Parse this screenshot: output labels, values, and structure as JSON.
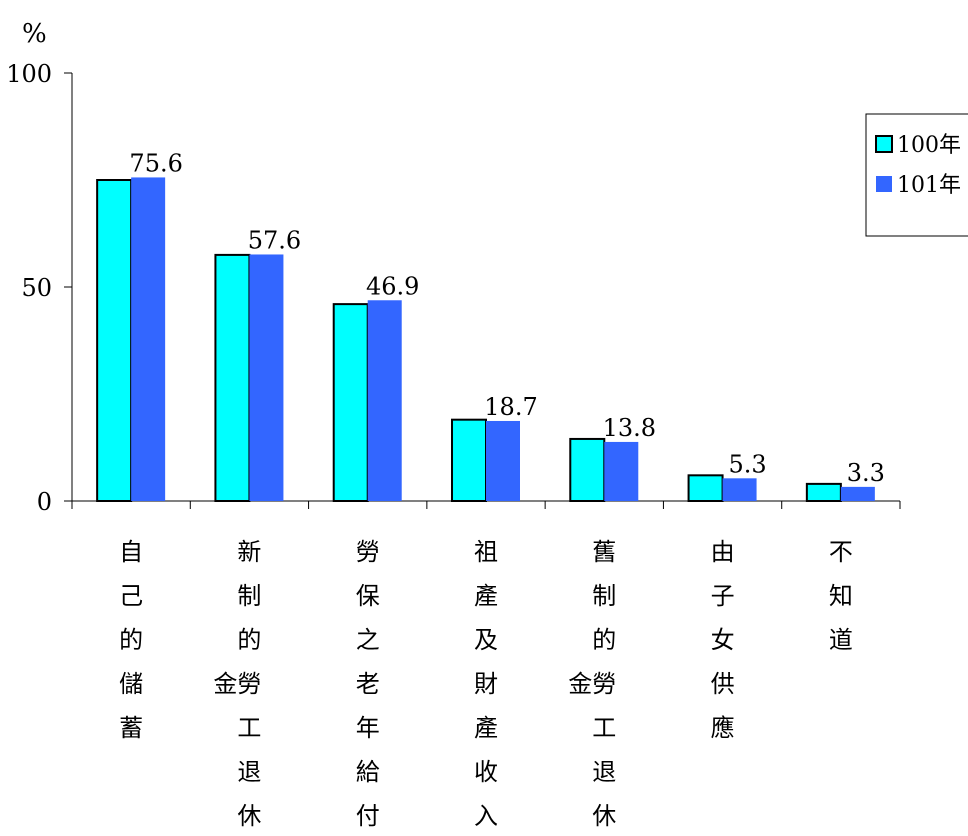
{
  "chart_data": {
    "type": "bar",
    "y_unit_label": "%",
    "ylim": [
      0,
      100
    ],
    "y_ticks": [
      "0",
      "50",
      "100"
    ],
    "legend_position": "top-right",
    "categories": [
      {
        "lines": [
          "自",
          "己",
          "的",
          "儲",
          "蓄"
        ]
      },
      {
        "lines": [
          "新",
          "制",
          "的",
          "金勞",
          "工",
          "退",
          "休"
        ]
      },
      {
        "lines": [
          "勞",
          "保",
          "之",
          "老",
          "年",
          "給",
          "付"
        ]
      },
      {
        "lines": [
          "祖",
          "產",
          "及",
          "財",
          "產",
          "收",
          "入"
        ]
      },
      {
        "lines": [
          "舊",
          "制",
          "的",
          "金勞",
          "工",
          "退",
          "休"
        ]
      },
      {
        "lines": [
          "由",
          "子",
          "女",
          "供",
          "應"
        ]
      },
      {
        "lines": [
          "不",
          "知",
          "道"
        ]
      }
    ],
    "series": [
      {
        "name": "100年",
        "color": "#00FFFF",
        "values": [
          75.0,
          57.5,
          46.0,
          19.0,
          14.5,
          6.0,
          4.0
        ],
        "labels": [
          "",
          "",
          "",
          "",
          "",
          "",
          ""
        ]
      },
      {
        "name": "101年",
        "color": "#3366FF",
        "values": [
          75.6,
          57.6,
          46.9,
          18.7,
          13.8,
          5.3,
          3.3
        ],
        "labels": [
          "75.6",
          "57.6",
          "46.9",
          "18.7",
          "13.8",
          "5.3",
          "3.3"
        ]
      }
    ]
  }
}
